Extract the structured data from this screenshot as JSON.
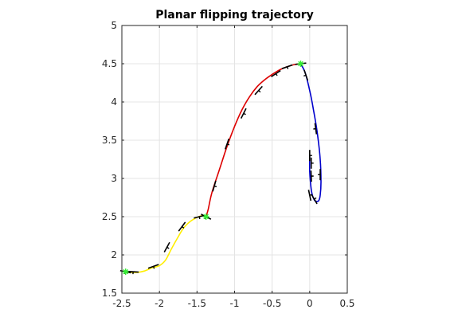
{
  "chart_data": {
    "type": "line",
    "title": "Planar flipping trajectory",
    "xlabel": "",
    "ylabel": "",
    "xlim": [
      -2.5,
      0.5
    ],
    "ylim": [
      1.5,
      5
    ],
    "grid": true,
    "legend": "none",
    "x_ticks": [
      -2.5,
      -2,
      -1.5,
      -1,
      -0.5,
      0,
      0.5
    ],
    "x_tick_labels": [
      "-2.5",
      "-2",
      "-1.5",
      "-1",
      "-0.5",
      "0",
      "0.5"
    ],
    "y_ticks": [
      1.5,
      2,
      2.5,
      3,
      3.5,
      4,
      4.5,
      5
    ],
    "y_tick_labels": [
      "1.5",
      "2",
      "2.5",
      "3",
      "3.5",
      "4",
      "4.5",
      "5"
    ],
    "series": [
      {
        "color": "#ffee00",
        "x": [
          -2.45,
          -2.4,
          -2.3,
          -2.2,
          -2.1,
          -2.0,
          -1.92,
          -1.85,
          -1.76,
          -1.68,
          -1.6,
          -1.52,
          -1.45,
          -1.4,
          -1.38
        ],
        "y": [
          1.78,
          1.77,
          1.77,
          1.79,
          1.83,
          1.86,
          1.93,
          2.06,
          2.22,
          2.35,
          2.43,
          2.48,
          2.51,
          2.51,
          2.5
        ]
      },
      {
        "color": "#dd0000",
        "x": [
          -1.38,
          -1.35,
          -1.3,
          -1.2,
          -1.1,
          -1.0,
          -0.9,
          -0.8,
          -0.7,
          -0.6,
          -0.5,
          -0.4,
          -0.3,
          -0.2,
          -0.12
        ],
        "y": [
          2.5,
          2.6,
          2.82,
          3.12,
          3.42,
          3.68,
          3.9,
          4.07,
          4.2,
          4.29,
          4.36,
          4.42,
          4.46,
          4.49,
          4.5
        ]
      },
      {
        "color": "#0000cc",
        "x": [
          -0.12,
          -0.06,
          0.0,
          0.05,
          0.1,
          0.14,
          0.15,
          0.14,
          0.12,
          0.09,
          0.06,
          0.03,
          0.01,
          0.0,
          0.0,
          0.0
        ],
        "y": [
          4.5,
          4.38,
          4.15,
          3.9,
          3.6,
          3.25,
          2.95,
          2.78,
          2.71,
          2.7,
          2.72,
          2.8,
          2.95,
          3.1,
          3.2,
          3.3
        ]
      }
    ],
    "markers": {
      "symbol": "*",
      "color": "#33ee33",
      "points": [
        [
          -2.45,
          1.78
        ],
        [
          -1.38,
          2.5
        ],
        [
          -0.12,
          4.5
        ]
      ]
    },
    "orientation_glyphs": {
      "color": "#000000",
      "points": [
        [
          -2.45,
          1.78
        ],
        [
          -2.35,
          1.78
        ],
        [
          -2.08,
          1.85
        ],
        [
          -1.9,
          2.1
        ],
        [
          -1.7,
          2.37
        ],
        [
          -1.47,
          2.5
        ],
        [
          -1.38,
          2.5
        ],
        [
          -1.27,
          2.9
        ],
        [
          -1.1,
          3.45
        ],
        [
          -0.88,
          3.85
        ],
        [
          -0.68,
          4.15
        ],
        [
          -0.45,
          4.37
        ],
        [
          -0.3,
          4.46
        ],
        [
          -0.12,
          4.5
        ],
        [
          -0.05,
          4.35
        ],
        [
          0.08,
          3.65
        ],
        [
          0.0,
          3.3
        ],
        [
          0.02,
          3.2
        ],
        [
          0.02,
          3.03
        ],
        [
          0.14,
          3.05
        ],
        [
          0.0,
          2.78
        ],
        [
          0.06,
          2.73
        ]
      ]
    }
  }
}
